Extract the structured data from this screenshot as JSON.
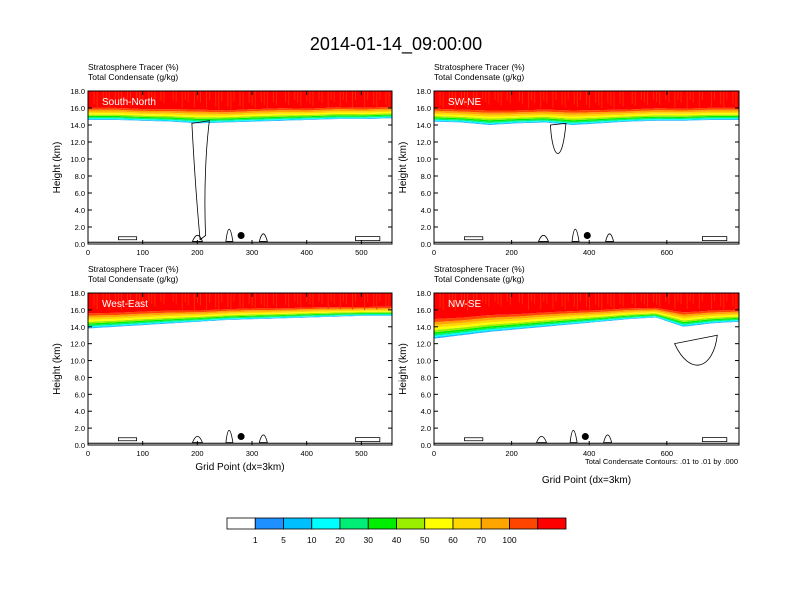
{
  "title": "2014-01-14_09:00:00",
  "panels": [
    {
      "label": "South-North",
      "header_line1": "Stratosphere Tracer   (%)",
      "header_line2": "Total Condensate   (g/kg)",
      "ylabel": "Height (km)",
      "xlabel": "",
      "xlim": [
        0,
        556
      ],
      "ylim": [
        0,
        18
      ],
      "xticks": [
        0,
        100,
        200,
        300,
        400,
        500
      ],
      "marker_x": 280,
      "marker_y": 1.0
    },
    {
      "label": "SW-NE",
      "header_line1": "Stratosphere Tracer   (%)",
      "header_line2": "Total Condensate   (g/kg)",
      "ylabel": "Height (km)",
      "xlabel": "",
      "xlim": [
        0,
        786
      ],
      "ylim": [
        0,
        18
      ],
      "xticks": [
        0,
        200,
        400,
        600
      ],
      "marker_x": 395,
      "marker_y": 1.0
    },
    {
      "label": "West-East",
      "header_line1": "Stratosphere Tracer   (%)",
      "header_line2": "Total Condensate   (g/kg)",
      "ylabel": "Height (km)",
      "xlabel": "Grid Point (dx=3km)",
      "xlim": [
        0,
        556
      ],
      "ylim": [
        0,
        18
      ],
      "xticks": [
        0,
        100,
        200,
        300,
        400,
        500
      ],
      "marker_x": 280,
      "marker_y": 1.0
    },
    {
      "label": "NW-SE",
      "header_line1": "Stratosphere Tracer   (%)",
      "header_line2": "Total Condensate   (g/kg)",
      "ylabel": "Height (km)",
      "xlabel": "Grid Point (dx=3km)",
      "xlim": [
        0,
        786
      ],
      "ylim": [
        0,
        18
      ],
      "xticks": [
        0,
        200,
        400,
        600
      ],
      "marker_x": 390,
      "marker_y": 1.0
    }
  ],
  "yticks": [
    "0.0",
    "2.0",
    "4.0",
    "6.0",
    "8.0",
    "10.0",
    "12.0",
    "14.0",
    "16.0",
    "18.0"
  ],
  "contour_note": "Total Condensate Contours: .01 to .01 by .000",
  "colorbar": {
    "levels": [
      "1",
      "5",
      "10",
      "20",
      "30",
      "40",
      "50",
      "60",
      "70",
      "100"
    ],
    "colors": [
      "#ffffff",
      "#1e90ff",
      "#00bfff",
      "#00ffff",
      "#00ee76",
      "#00ee00",
      "#9aee00",
      "#ffff00",
      "#ffd700",
      "#ffa500",
      "#ff4500",
      "#ff0000"
    ]
  },
  "chart_data": [
    {
      "type": "heatmap",
      "title": "South-North",
      "x_range": [
        0,
        556
      ],
      "y_range": [
        0,
        18
      ],
      "xlabel": "",
      "ylabel": "Height (km)",
      "tracer_top_km": [
        17.6,
        17.6,
        17.4,
        17.5,
        17.6,
        17.3,
        17.5,
        17.6,
        17.4,
        17.6,
        17.5,
        17.6
      ],
      "tracer_base_km": [
        14.6,
        14.6,
        14.5,
        14.4,
        14.2,
        14.3,
        14.4,
        14.5,
        14.6,
        14.7,
        14.7,
        14.8
      ]
    },
    {
      "type": "heatmap",
      "title": "SW-NE",
      "x_range": [
        0,
        786
      ],
      "y_range": [
        0,
        18
      ],
      "xlabel": "",
      "ylabel": "Height (km)",
      "tracer_top_km": [
        17.6,
        17.5,
        17.6,
        17.4,
        17.5,
        17.6,
        17.5,
        17.4,
        17.6,
        17.5,
        17.6,
        17.6
      ],
      "tracer_base_km": [
        14.4,
        14.3,
        14.0,
        14.2,
        14.3,
        14.0,
        14.2,
        14.4,
        14.5,
        14.5,
        14.6,
        14.6
      ]
    },
    {
      "type": "heatmap",
      "title": "West-East",
      "x_range": [
        0,
        556
      ],
      "y_range": [
        0,
        18
      ],
      "xlabel": "Grid Point (dx=3km)",
      "ylabel": "Height (km)",
      "tracer_top_km": [
        17.6,
        17.5,
        17.6,
        17.6,
        17.4,
        17.5,
        17.6,
        17.5,
        17.6,
        17.6,
        17.5,
        17.6
      ],
      "tracer_base_km": [
        13.8,
        14.0,
        14.2,
        14.4,
        14.6,
        14.8,
        14.9,
        15.0,
        15.1,
        15.2,
        15.3,
        15.3
      ]
    },
    {
      "type": "heatmap",
      "title": "NW-SE",
      "x_range": [
        0,
        786
      ],
      "y_range": [
        0,
        18
      ],
      "xlabel": "Grid Point (dx=3km)",
      "ylabel": "Height (km)",
      "tracer_top_km": [
        17.5,
        17.4,
        17.6,
        17.5,
        17.6,
        17.6,
        17.5,
        17.6,
        17.5,
        17.6,
        17.6,
        17.6
      ],
      "tracer_base_km": [
        12.6,
        13.0,
        13.4,
        13.7,
        14.0,
        14.3,
        14.6,
        14.9,
        15.1,
        14.0,
        14.4,
        14.6
      ]
    }
  ]
}
